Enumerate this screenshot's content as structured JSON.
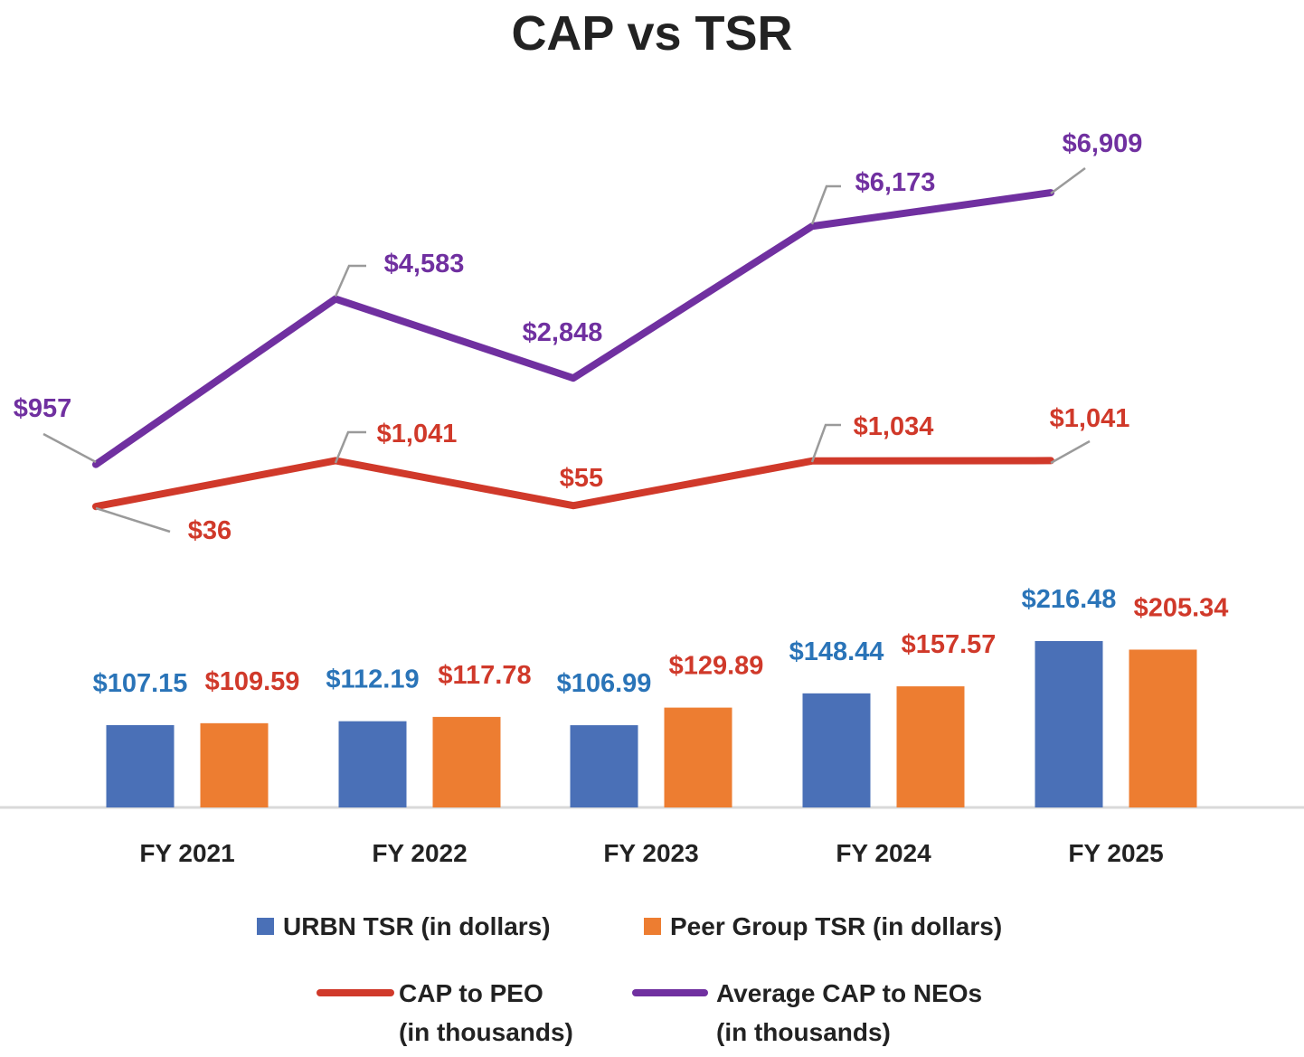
{
  "chart_data": {
    "title": "CAP vs TSR",
    "type": "bar+line",
    "categories": [
      "FY 2021",
      "FY 2022",
      "FY 2023",
      "FY 2024",
      "FY 2025"
    ],
    "bar_series": [
      {
        "name": "URBN TSR (in dollars)",
        "color": "#4a70b7",
        "label_color": "#2a74b8",
        "values": [
          107.15,
          112.19,
          106.99,
          148.44,
          216.48
        ],
        "labels": [
          "$107.15",
          "$112.19",
          "$106.99",
          "$148.44",
          "$216.48"
        ]
      },
      {
        "name": "Peer Group TSR (in dollars)",
        "color": "#ed7d31",
        "label_color": "#d0392a",
        "values": [
          109.59,
          117.78,
          129.89,
          157.57,
          205.34
        ],
        "labels": [
          "$109.59",
          "$117.78",
          "$129.89",
          "$157.57",
          "$205.34"
        ]
      }
    ],
    "line_series": [
      {
        "name": "CAP to PEO (in thousands)",
        "name_lines": [
          "CAP to PEO",
          "(in thousands)"
        ],
        "color": "#d0392a",
        "values": [
          36,
          1041,
          55,
          1034,
          1041
        ],
        "labels": [
          "$36",
          "$1,041",
          "$55",
          "$1,034",
          "$1,041"
        ]
      },
      {
        "name": "Average CAP to NEOs (in thousands)",
        "name_lines": [
          "Average CAP to NEOs",
          "(in thousands)"
        ],
        "color": "#7030a0",
        "values": [
          957,
          4583,
          2848,
          6173,
          6909
        ],
        "labels": [
          "$957",
          "$4,583",
          "$2,848",
          "$6,173",
          "$6,909"
        ]
      }
    ],
    "grid": false,
    "legend_position": "bottom",
    "leader_line_color": "#9a9a9a"
  }
}
